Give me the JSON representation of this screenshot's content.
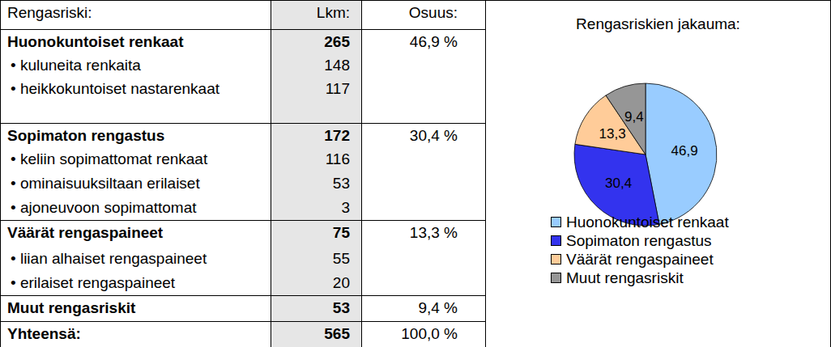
{
  "table": {
    "header": [
      "Rengasriski:",
      "Lkm:",
      "Osuus:"
    ],
    "groups": [
      {
        "label": "Huonokuntoiset renkaat",
        "count": "265",
        "share": "46,9 %",
        "items": [
          {
            "label": "• kuluneita renkaita",
            "count": "148"
          },
          {
            "label": "• heikkokuntoiset nastarenkaat",
            "count": "117"
          }
        ]
      },
      {
        "label": "Sopimaton rengastus",
        "count": "172",
        "share": "30,4 %",
        "items": [
          {
            "label": "• keliin sopimattomat renkaat",
            "count": "116"
          },
          {
            "label": "• ominaisuuksiltaan erilaiset",
            "count": "53"
          },
          {
            "label": "• ajoneuvoon sopimattomat",
            "count": "3"
          }
        ]
      },
      {
        "label": "Väärät rengaspaineet",
        "count": "75",
        "share": "13,3 %",
        "items": [
          {
            "label": "• liian alhaiset rengaspaineet",
            "count": "55"
          },
          {
            "label": "• erilaiset rengaspaineet",
            "count": "20"
          }
        ]
      },
      {
        "label": "Muut rengasriskit",
        "count": "53",
        "share": "9,4 %",
        "items": []
      }
    ],
    "total": {
      "label": "Yhteensä:",
      "count": "565",
      "share": "100,0 %"
    }
  },
  "chart_data": {
    "type": "pie",
    "title": "Rengasriskien jakauma:",
    "categories": [
      "Huonokuntoiset renkaat",
      "Sopimaton rengastus",
      "Väärät rengaspaineet",
      "Muut rengasriskit"
    ],
    "values": [
      46.9,
      30.4,
      13.3,
      9.4
    ],
    "value_labels": [
      "46,9",
      "30,4",
      "13,3",
      "9,4"
    ],
    "colors": [
      "#99ccff",
      "#3333ee",
      "#ffcc99",
      "#969696"
    ],
    "data_labels": true,
    "legend": "bottom"
  }
}
